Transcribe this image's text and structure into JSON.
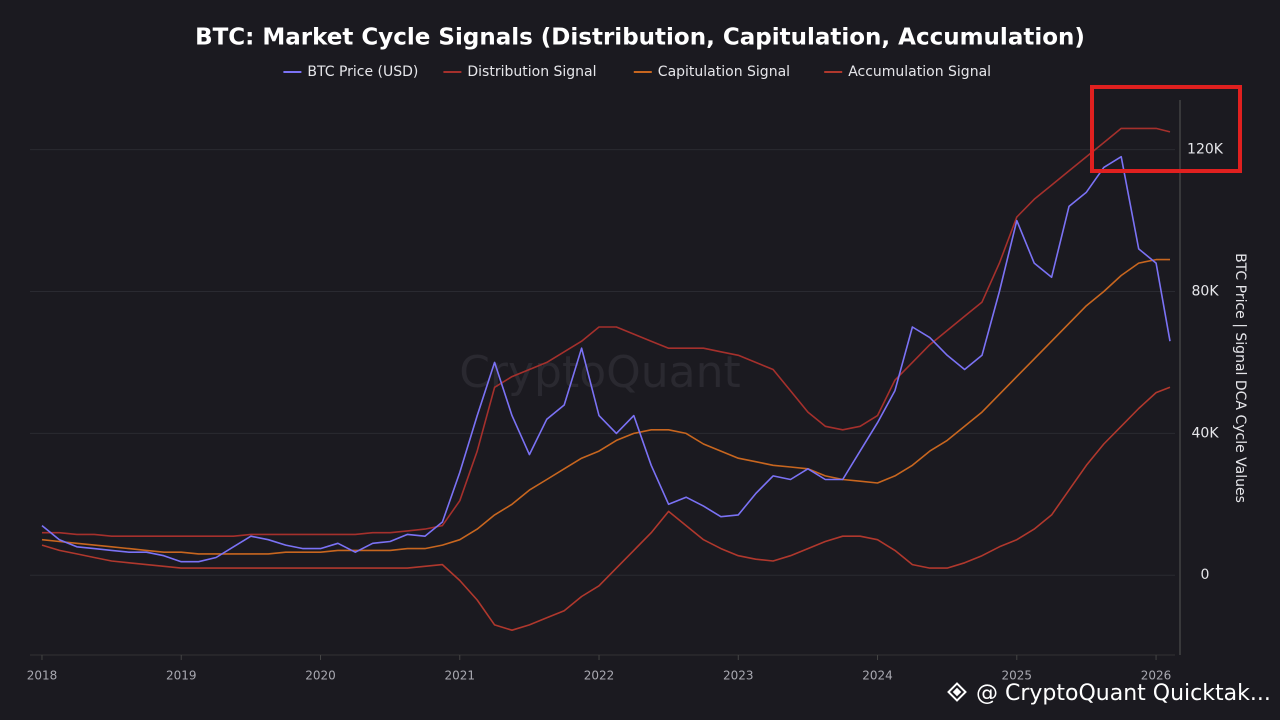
{
  "chart_data": {
    "type": "line",
    "title": "BTC: Market Cycle Signals (Distribution, Capitulation, Accumulation)",
    "y_label": "BTC Price | Signal DCA Cycle Values",
    "watermark": "CryptoQuant",
    "footer": "@ CryptoQuant Quicktak...",
    "x": [
      2018,
      2018.125,
      2018.25,
      2018.375,
      2018.5,
      2018.625,
      2018.75,
      2018.875,
      2019,
      2019.125,
      2019.25,
      2019.375,
      2019.5,
      2019.625,
      2019.75,
      2019.875,
      2020,
      2020.125,
      2020.25,
      2020.375,
      2020.5,
      2020.625,
      2020.75,
      2020.875,
      2021,
      2021.125,
      2021.25,
      2021.375,
      2021.5,
      2021.625,
      2021.75,
      2021.875,
      2022,
      2022.125,
      2022.25,
      2022.375,
      2022.5,
      2022.625,
      2022.75,
      2022.875,
      2023,
      2023.125,
      2023.25,
      2023.375,
      2023.5,
      2023.625,
      2023.75,
      2023.875,
      2024,
      2024.125,
      2024.25,
      2024.375,
      2024.5,
      2024.625,
      2024.75,
      2024.875,
      2025,
      2025.125,
      2025.25,
      2025.375,
      2025.5,
      2025.625,
      2025.75,
      2025.875,
      2026,
      2026.1
    ],
    "xlim": [
      2017.914,
      2026.136
    ],
    "xticks": [
      2018,
      2019,
      2020,
      2021,
      2022,
      2023,
      2024,
      2025,
      2026
    ],
    "ylim": [
      -22500,
      134000
    ],
    "yticks": [
      {
        "value": 0,
        "label": "0"
      },
      {
        "value": 40000,
        "label": "40K"
      },
      {
        "value": 80000,
        "label": "80K"
      },
      {
        "value": 120000,
        "label": "120K"
      }
    ],
    "grid": true,
    "legend": "top",
    "series": [
      {
        "name": "BTC Price (USD)",
        "color": "#7b72f5",
        "values": [
          14000,
          10000,
          8000,
          7500,
          7000,
          6500,
          6500,
          5500,
          3800,
          3800,
          5000,
          8000,
          11000,
          10000,
          8500,
          7500,
          7500,
          9000,
          6500,
          9000,
          9500,
          11500,
          11000,
          15000,
          29000,
          45000,
          60000,
          45000,
          34000,
          44000,
          48000,
          64000,
          45000,
          40000,
          45000,
          31000,
          20000,
          22000,
          19500,
          16500,
          17000,
          23000,
          28000,
          27000,
          30000,
          27000,
          27000,
          35000,
          43000,
          52000,
          70000,
          67000,
          62000,
          58000,
          62000,
          80000,
          100000,
          88000,
          84000,
          104000,
          108000,
          115000,
          118000,
          92000,
          88000,
          66000
        ]
      },
      {
        "name": "Distribution Signal",
        "color": "#a5302c",
        "values": [
          12000,
          12000,
          11500,
          11500,
          11000,
          11000,
          11000,
          11000,
          11000,
          11000,
          11000,
          11000,
          11500,
          11500,
          11500,
          11500,
          11500,
          11500,
          11500,
          12000,
          12000,
          12500,
          13000,
          14000,
          21000,
          35000,
          53000,
          56000,
          58000,
          60000,
          63000,
          66000,
          70000,
          70000,
          68000,
          66000,
          64000,
          64000,
          64000,
          63000,
          62000,
          60000,
          58000,
          52000,
          46000,
          42000,
          41000,
          42000,
          45000,
          55000,
          60000,
          65000,
          69000,
          73000,
          77000,
          88000,
          101000,
          106000,
          110000,
          114000,
          118000,
          122000,
          126000,
          126000,
          126000,
          125000
        ]
      },
      {
        "name": "Capitulation Signal",
        "color": "#c8661f",
        "values": [
          10000,
          9500,
          9000,
          8500,
          8000,
          7500,
          7000,
          6500,
          6500,
          6000,
          6000,
          6000,
          6000,
          6000,
          6500,
          6500,
          6500,
          7000,
          7000,
          7000,
          7000,
          7500,
          7500,
          8500,
          10000,
          13000,
          17000,
          20000,
          24000,
          27000,
          30000,
          33000,
          35000,
          38000,
          40000,
          41000,
          41000,
          40000,
          37000,
          35000,
          33000,
          32000,
          31000,
          30500,
          30000,
          28000,
          27000,
          26500,
          26000,
          28000,
          31000,
          35000,
          38000,
          42000,
          46000,
          51000,
          56000,
          61000,
          66000,
          71000,
          76000,
          80000,
          84500,
          88000,
          89000,
          89000
        ]
      },
      {
        "name": "Accumulation Signal",
        "color": "#b0382d",
        "values": [
          8500,
          7000,
          6000,
          5000,
          4000,
          3500,
          3000,
          2500,
          2000,
          2000,
          2000,
          2000,
          2000,
          2000,
          2000,
          2000,
          2000,
          2000,
          2000,
          2000,
          2000,
          2000,
          2500,
          3000,
          -1500,
          -7000,
          -14000,
          -15500,
          -14000,
          -12000,
          -10000,
          -6000,
          -3000,
          2000,
          7000,
          12000,
          18000,
          14000,
          10000,
          7500,
          5500,
          4500,
          4000,
          5500,
          7500,
          9500,
          11000,
          11000,
          10000,
          7000,
          3000,
          2000,
          2000,
          3500,
          5500,
          8000,
          10000,
          13000,
          17000,
          24000,
          31000,
          37000,
          42000,
          47000,
          51500,
          53000
        ]
      }
    ]
  }
}
